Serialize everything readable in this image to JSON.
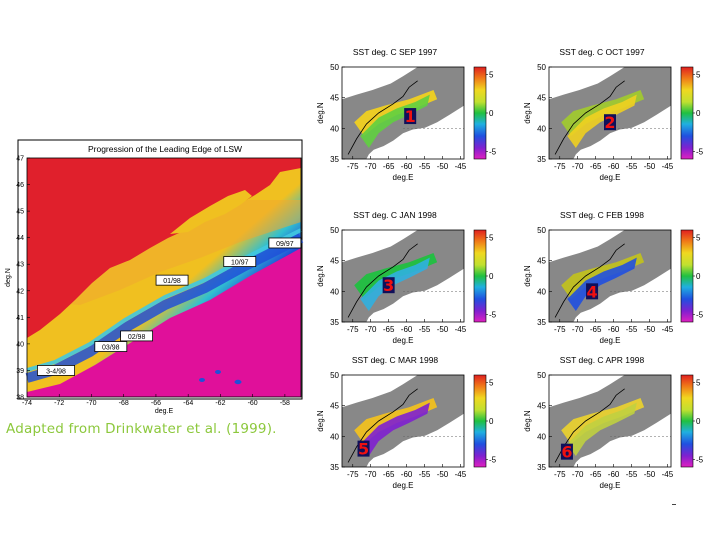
{
  "caption": "Adapted from Drinkwater et al. (1999).",
  "chart_data": [
    {
      "type": "heatmap",
      "title": "Progression of the Leading Edge of LSW",
      "xlabel": "deg.E",
      "ylabel": "deg.N",
      "xlim": [
        -74,
        -57
      ],
      "ylim": [
        38,
        47
      ],
      "x_ticks": [
        "-72",
        "-70",
        "-68",
        "-66",
        "-64",
        "-62",
        "-60",
        "-58"
      ],
      "x_tick_values": [
        -72,
        -70,
        -68,
        -66,
        -64,
        -62,
        -60,
        -58
      ],
      "x_edge_labels": [
        "-74"
      ],
      "y_ticks": [
        "38",
        "39",
        "40",
        "41",
        "42",
        "43",
        "44",
        "45",
        "46",
        "47"
      ],
      "y_tick_values": [
        38,
        39,
        40,
        41,
        42,
        43,
        44,
        45,
        46,
        47
      ],
      "annotations": [
        {
          "label": "09/97",
          "x": -58.0,
          "y": 43.8
        },
        {
          "label": "10/97",
          "x": -60.8,
          "y": 43.1
        },
        {
          "label": "01/98",
          "x": -65.0,
          "y": 42.4
        },
        {
          "label": "02/98",
          "x": -67.2,
          "y": 40.3
        },
        {
          "label": "03/98",
          "x": -68.8,
          "y": 39.9
        },
        {
          "label": "3-4/98",
          "x": -72.2,
          "y": 39.0
        }
      ],
      "colors": {
        "land": "#e0202c",
        "slope": "#f0c020",
        "deep": "#e0109a"
      }
    },
    {
      "type": "heatmap",
      "title": "SST deg. C  SEP  1997",
      "xlabel": "deg.E",
      "ylabel": "deg.N",
      "xlim": [
        -78,
        -44
      ],
      "ylim": [
        35,
        50
      ],
      "x_ticks": [
        "-75",
        "-70",
        "-65",
        "-60",
        "-55",
        "-50",
        "-45"
      ],
      "x_tick_values": [
        -75,
        -70,
        -65,
        -60,
        -55,
        -50,
        -45
      ],
      "y_ticks": [
        "35",
        "40",
        "45",
        "50"
      ],
      "y_tick_values": [
        35,
        40,
        45,
        50
      ],
      "colorbar_ticks": [
        "5",
        "0",
        "-5"
      ],
      "colorbar_tick_values": [
        5,
        0,
        -5
      ],
      "clim": [
        -6,
        6
      ],
      "marker": {
        "label": "1",
        "x": -59,
        "y": 42
      }
    },
    {
      "type": "heatmap",
      "title": "SST deg. C  OCT  1997",
      "xlabel": "deg.E",
      "ylabel": "deg.N",
      "xlim": [
        -78,
        -44
      ],
      "ylim": [
        35,
        50
      ],
      "x_ticks": [
        "-75",
        "-70",
        "-65",
        "-60",
        "-55",
        "-50",
        "-45"
      ],
      "x_tick_values": [
        -75,
        -70,
        -65,
        -60,
        -55,
        -50,
        -45
      ],
      "y_ticks": [
        "35",
        "40",
        "45",
        "50"
      ],
      "y_tick_values": [
        35,
        40,
        45,
        50
      ],
      "colorbar_ticks": [
        "5",
        "0",
        "-5"
      ],
      "colorbar_tick_values": [
        5,
        0,
        -5
      ],
      "clim": [
        -6,
        6
      ],
      "marker": {
        "label": "2",
        "x": -61,
        "y": 41
      }
    },
    {
      "type": "heatmap",
      "title": "SST deg. C  JAN  1998",
      "xlabel": "deg.E",
      "ylabel": "deg.N",
      "xlim": [
        -78,
        -44
      ],
      "ylim": [
        35,
        50
      ],
      "x_ticks": [
        "-75",
        "-70",
        "-65",
        "-60",
        "-55",
        "-50",
        "-45"
      ],
      "x_tick_values": [
        -75,
        -70,
        -65,
        -60,
        -55,
        -50,
        -45
      ],
      "y_ticks": [
        "35",
        "40",
        "45",
        "50"
      ],
      "y_tick_values": [
        35,
        40,
        45,
        50
      ],
      "colorbar_ticks": [
        "5",
        "0",
        "-5"
      ],
      "colorbar_tick_values": [
        5,
        0,
        -5
      ],
      "clim": [
        -6,
        6
      ],
      "marker": {
        "label": "3",
        "x": -65,
        "y": 41
      }
    },
    {
      "type": "heatmap",
      "title": "SST deg. C  FEB  1998",
      "xlabel": "deg.E",
      "ylabel": "deg.N",
      "xlim": [
        -78,
        -44
      ],
      "ylim": [
        35,
        50
      ],
      "x_ticks": [
        "-75",
        "-70",
        "-65",
        "-60",
        "-55",
        "-50",
        "-45"
      ],
      "x_tick_values": [
        -75,
        -70,
        -65,
        -60,
        -55,
        -50,
        -45
      ],
      "y_ticks": [
        "35",
        "40",
        "45",
        "50"
      ],
      "y_tick_values": [
        35,
        40,
        45,
        50
      ],
      "colorbar_ticks": [
        "5",
        "0",
        "-5"
      ],
      "colorbar_tick_values": [
        5,
        0,
        -5
      ],
      "clim": [
        -6,
        6
      ],
      "marker": {
        "label": "4",
        "x": -66,
        "y": 40
      }
    },
    {
      "type": "heatmap",
      "title": "SST deg. C  MAR  1998",
      "xlabel": "deg.E",
      "ylabel": "deg.N",
      "xlim": [
        -78,
        -44
      ],
      "ylim": [
        35,
        50
      ],
      "x_ticks": [
        "-75",
        "-70",
        "-65",
        "-60",
        "-55",
        "-50",
        "-45"
      ],
      "x_tick_values": [
        -75,
        -70,
        -65,
        -60,
        -55,
        -50,
        -45
      ],
      "y_ticks": [
        "35",
        "40",
        "45",
        "50"
      ],
      "y_tick_values": [
        35,
        40,
        45,
        50
      ],
      "colorbar_ticks": [
        "5",
        "0",
        "-5"
      ],
      "colorbar_tick_values": [
        5,
        0,
        -5
      ],
      "clim": [
        -6,
        6
      ],
      "marker": {
        "label": "5",
        "x": -72,
        "y": 38
      }
    },
    {
      "type": "heatmap",
      "title": "SST deg. C  APR  1998",
      "xlabel": "deg.E",
      "ylabel": "deg.N",
      "xlim": [
        -78,
        -44
      ],
      "ylim": [
        35,
        50
      ],
      "x_ticks": [
        "-75",
        "-70",
        "-65",
        "-60",
        "-55",
        "-50",
        "-45"
      ],
      "x_tick_values": [
        -75,
        -70,
        -65,
        -60,
        -55,
        -50,
        -45
      ],
      "y_ticks": [
        "35",
        "40",
        "45",
        "50"
      ],
      "y_tick_values": [
        35,
        40,
        45,
        50
      ],
      "colorbar_ticks": [
        "5",
        "0",
        "-5"
      ],
      "colorbar_tick_values": [
        5,
        0,
        -5
      ],
      "clim": [
        -6,
        6
      ],
      "marker": {
        "label": "6",
        "x": -73,
        "y": 37.5
      }
    }
  ]
}
